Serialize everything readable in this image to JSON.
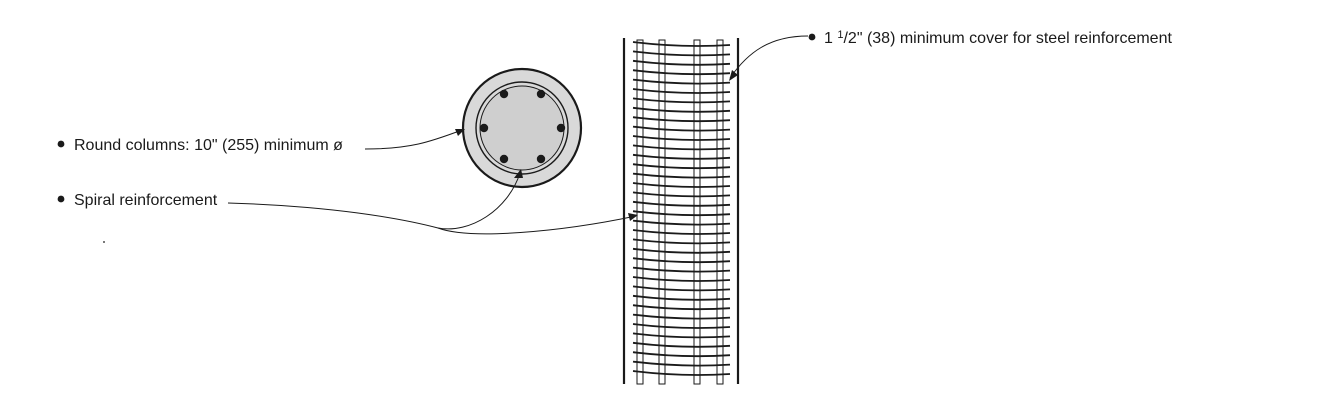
{
  "callouts": {
    "round_columns": "Round columns: 10\" (255) minimum ø",
    "spiral": "Spiral reinforcement",
    "cover_whole": "1 ",
    "cover_num": "1",
    "cover_den": "/2",
    "cover_rest": "\" (38) minimum cover for steel reinforcement"
  },
  "colors": {
    "line": "#1a1a1a",
    "concrete": "#d9d9d9",
    "core": "#cfcfcf"
  }
}
